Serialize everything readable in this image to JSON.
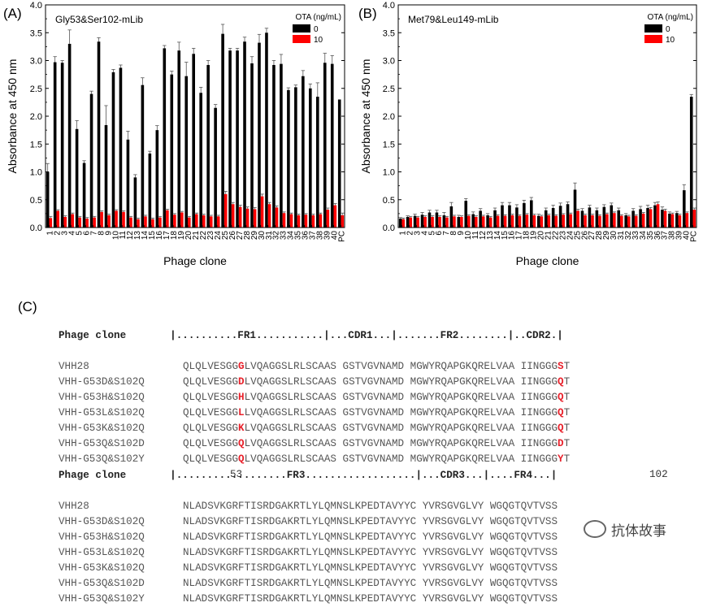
{
  "chart_data": [
    {
      "type": "bar",
      "panel_label": "(A)",
      "title": "Gly53&Ser102-mLib",
      "xlabel": "Phage clone",
      "ylabel": "Absorbance at 450 nm",
      "ylim": [
        0,
        4.0
      ],
      "yticks": [
        "0.0",
        "0.5",
        "1.0",
        "1.5",
        "2.0",
        "2.5",
        "3.0",
        "3.5",
        "4.0"
      ],
      "legend_title": "OTA (ng/mL)",
      "categories": [
        "1",
        "2",
        "3",
        "4",
        "5",
        "6",
        "7",
        "8",
        "9",
        "10",
        "11",
        "12",
        "13",
        "14",
        "15",
        "16",
        "17",
        "18",
        "19",
        "20",
        "21",
        "22",
        "23",
        "24",
        "25",
        "26",
        "27",
        "28",
        "29",
        "30",
        "31",
        "32",
        "33",
        "34",
        "35",
        "36",
        "37",
        "38",
        "39",
        "40",
        "PC"
      ],
      "series": [
        {
          "name": "0",
          "color": "#000000",
          "values": [
            1.0,
            2.97,
            2.96,
            3.3,
            1.77,
            1.16,
            2.4,
            3.34,
            1.84,
            2.79,
            2.87,
            1.58,
            0.9,
            2.56,
            1.33,
            1.75,
            3.22,
            2.75,
            3.18,
            2.72,
            3.12,
            2.42,
            2.92,
            2.15,
            3.48,
            3.18,
            3.18,
            3.34,
            2.95,
            3.32,
            3.5,
            2.92,
            2.94,
            2.47,
            2.52,
            2.72,
            2.5,
            2.35,
            2.96,
            2.94,
            2.3
          ],
          "errors": [
            0.15,
            0.1,
            0.04,
            0.25,
            0.15,
            0.04,
            0.05,
            0.07,
            0.35,
            0.05,
            0.05,
            0.15,
            0.05,
            0.13,
            0.04,
            0.08,
            0.05,
            0.06,
            0.15,
            0.25,
            0.1,
            0.1,
            0.08,
            0.06,
            0.17,
            0.04,
            0.04,
            0.08,
            0.12,
            0.15,
            0.08,
            0.08,
            0.17,
            0.04,
            0.04,
            0.1,
            0.08,
            0.25,
            0.17,
            0.15,
            0.0
          ]
        },
        {
          "name": "10",
          "color": "#ff0000",
          "values": [
            0.17,
            0.3,
            0.19,
            0.24,
            0.18,
            0.16,
            0.18,
            0.28,
            0.22,
            0.3,
            0.28,
            0.18,
            0.15,
            0.2,
            0.15,
            0.18,
            0.31,
            0.23,
            0.27,
            0.18,
            0.24,
            0.22,
            0.2,
            0.2,
            0.6,
            0.42,
            0.37,
            0.34,
            0.33,
            0.56,
            0.42,
            0.36,
            0.26,
            0.24,
            0.22,
            0.23,
            0.22,
            0.24,
            0.32,
            0.4,
            0.22
          ],
          "errors": [
            0.03,
            0.02,
            0.02,
            0.02,
            0.02,
            0.02,
            0.02,
            0.02,
            0.02,
            0.02,
            0.02,
            0.02,
            0.02,
            0.02,
            0.02,
            0.02,
            0.02,
            0.02,
            0.02,
            0.02,
            0.02,
            0.02,
            0.02,
            0.02,
            0.05,
            0.03,
            0.03,
            0.03,
            0.03,
            0.04,
            0.03,
            0.03,
            0.02,
            0.02,
            0.02,
            0.02,
            0.02,
            0.02,
            0.03,
            0.03,
            0.04
          ]
        }
      ]
    },
    {
      "type": "bar",
      "panel_label": "(B)",
      "title": "Met79&Leu149-mLib",
      "xlabel": "Phage clone",
      "ylabel": "Absorbance at 450 nm",
      "ylim": [
        0,
        4.0
      ],
      "yticks": [
        "0.0",
        "0.5",
        "1.0",
        "1.5",
        "2.0",
        "2.5",
        "3.0",
        "3.5",
        "4.0"
      ],
      "legend_title": "OTA (ng/mL)",
      "categories": [
        "1",
        "2",
        "3",
        "4",
        "5",
        "6",
        "7",
        "8",
        "9",
        "10",
        "11",
        "12",
        "13",
        "14",
        "15",
        "16",
        "17",
        "18",
        "19",
        "20",
        "21",
        "22",
        "23",
        "24",
        "25",
        "26",
        "27",
        "28",
        "29",
        "30",
        "31",
        "32",
        "33",
        "34",
        "35",
        "36",
        "37",
        "38",
        "39",
        "40",
        "PC"
      ],
      "series": [
        {
          "name": "0",
          "color": "#000000",
          "values": [
            0.16,
            0.19,
            0.21,
            0.23,
            0.27,
            0.27,
            0.22,
            0.38,
            0.19,
            0.48,
            0.24,
            0.3,
            0.22,
            0.31,
            0.4,
            0.4,
            0.36,
            0.44,
            0.49,
            0.21,
            0.31,
            0.35,
            0.39,
            0.42,
            0.68,
            0.3,
            0.36,
            0.31,
            0.37,
            0.4,
            0.31,
            0.22,
            0.3,
            0.33,
            0.35,
            0.4,
            0.32,
            0.25,
            0.26,
            0.67,
            2.35
          ],
          "errors": [
            0.02,
            0.02,
            0.03,
            0.04,
            0.04,
            0.04,
            0.05,
            0.07,
            0.03,
            0.04,
            0.04,
            0.04,
            0.03,
            0.04,
            0.05,
            0.05,
            0.05,
            0.05,
            0.05,
            0.03,
            0.04,
            0.05,
            0.05,
            0.04,
            0.12,
            0.04,
            0.04,
            0.04,
            0.04,
            0.04,
            0.04,
            0.03,
            0.04,
            0.05,
            0.05,
            0.05,
            0.05,
            0.03,
            0.03,
            0.1,
            0.04
          ]
        },
        {
          "name": "10",
          "color": "#ff0000",
          "values": [
            0.15,
            0.18,
            0.18,
            0.19,
            0.19,
            0.19,
            0.18,
            0.2,
            0.19,
            0.21,
            0.19,
            0.2,
            0.18,
            0.21,
            0.21,
            0.22,
            0.21,
            0.23,
            0.22,
            0.2,
            0.22,
            0.21,
            0.23,
            0.24,
            0.3,
            0.22,
            0.22,
            0.21,
            0.24,
            0.26,
            0.21,
            0.2,
            0.21,
            0.25,
            0.33,
            0.42,
            0.3,
            0.24,
            0.22,
            0.26,
            0.32
          ],
          "errors": [
            0.02,
            0.02,
            0.02,
            0.02,
            0.02,
            0.02,
            0.02,
            0.02,
            0.02,
            0.02,
            0.02,
            0.02,
            0.02,
            0.02,
            0.02,
            0.02,
            0.02,
            0.02,
            0.02,
            0.02,
            0.02,
            0.02,
            0.02,
            0.02,
            0.03,
            0.02,
            0.02,
            0.02,
            0.02,
            0.02,
            0.02,
            0.02,
            0.02,
            0.02,
            0.03,
            0.04,
            0.03,
            0.02,
            0.02,
            0.02,
            0.03
          ]
        }
      ]
    }
  ],
  "panel_c": {
    "label": "(C)",
    "block1": {
      "header_name": "Phage clone",
      "header_regions": "|..........FR1...........|...CDR1...|.......FR2........|..CDR2.|",
      "rows": [
        {
          "name": "VHH28",
          "a": "QLQLVESGG",
          "m1": "G",
          "b": "LVQAGGSLRLSCAAS GSTVGVNAMD MGWYRQAPGKQRELVAA IINGGG",
          "m2": "S",
          "c": "T"
        },
        {
          "name": "VHH-G53D&S102Q",
          "a": "QLQLVESGG",
          "m1": "D",
          "b": "LVQAGGSLRLSCAAS GSTVGVNAMD MGWYRQAPGKQRELVAA IINGGG",
          "m2": "Q",
          "c": "T"
        },
        {
          "name": "VHH-G53H&S102Q",
          "a": "QLQLVESGG",
          "m1": "H",
          "b": "LVQAGGSLRLSCAAS GSTVGVNAMD MGWYRQAPGKQRELVAA IINGGG",
          "m2": "Q",
          "c": "T"
        },
        {
          "name": "VHH-G53L&S102Q",
          "a": "QLQLVESGG",
          "m1": "L",
          "b": "LVQAGGSLRLSCAAS GSTVGVNAMD MGWYRQAPGKQRELVAA IINGGG",
          "m2": "Q",
          "c": "T"
        },
        {
          "name": "VHH-G53K&S102Q",
          "a": "QLQLVESGG",
          "m1": "K",
          "b": "LVQAGGSLRLSCAAS GSTVGVNAMD MGWYRQAPGKQRELVAA IINGGG",
          "m2": "Q",
          "c": "T"
        },
        {
          "name": "VHH-G53Q&S102D",
          "a": "QLQLVESGG",
          "m1": "Q",
          "b": "LVQAGGSLRLSCAAS GSTVGVNAMD MGWYRQAPGKQRELVAA IINGGG",
          "m2": "D",
          "c": "T"
        },
        {
          "name": "VHH-G53Q&S102Y",
          "a": "QLQLVESGG",
          "m1": "Q",
          "b": "LVQAGGSLRLSCAAS GSTVGVNAMD MGWYRQAPGKQRELVAA IINGGG",
          "m2": "Y",
          "c": "T"
        }
      ],
      "pos1": "53",
      "pos2": "102"
    },
    "block2": {
      "header_name": "Phage clone",
      "header_regions": "|..................FR3..................|...CDR3...|....FR4...|",
      "rows": [
        {
          "name": "VHH28",
          "seq": "NLADSVKGRFTISRDGAKRTLYLQMNSLKPEDTAVYYC YVRSGVGLVY WGQGTQVTVSS"
        },
        {
          "name": "VHH-G53D&S102Q",
          "seq": "NLADSVKGRFTISRDGAKRTLYLQMNSLKPEDTAVYYC YVRSGVGLVY WGQGTQVTVSS"
        },
        {
          "name": "VHH-G53H&S102Q",
          "seq": "NLADSVKGRFTISRDGAKRTLYLQMNSLKPEDTAVYYC YVRSGVGLVY WGQGTQVTVSS"
        },
        {
          "name": "VHH-G53L&S102Q",
          "seq": "NLADSVKGRFTISRDGAKRTLYLQMNSLKPEDTAVYYC YVRSGVGLVY WGQGTQVTVSS"
        },
        {
          "name": "VHH-G53K&S102Q",
          "seq": "NLADSVKGRFTISRDGAKRTLYLQMNSLKPEDTAVYYC YVRSGVGLVY WGQGTQVTVSS"
        },
        {
          "name": "VHH-G53Q&S102D",
          "seq": "NLADSVKGRFTISRDGAKRTLYLQMNSLKPEDTAVYYC YVRSGVGLVY WGQGTQVTVSS"
        },
        {
          "name": "VHH-G53Q&S102Y",
          "seq": "NLADSVKGRFTISRDGAKRTLYLQMNSLKPEDTAVYYC YVRSGVGLVY WGQGTQVTVSS"
        }
      ]
    },
    "watermark": "抗体故事",
    "mutation_color": "#e8202a"
  }
}
